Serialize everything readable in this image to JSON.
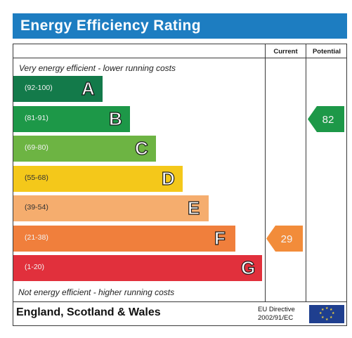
{
  "header": {
    "title": "Energy Efficiency Rating",
    "color": "#1d7dc1"
  },
  "columns": {
    "current": "Current",
    "potential": "Potential"
  },
  "notes": {
    "top": "Very energy efficient - lower running costs",
    "bottom": "Not energy efficient - higher running costs"
  },
  "bands": [
    {
      "range": "(92-100)",
      "letter": "A",
      "color": "#137a4a"
    },
    {
      "range": "(81-91)",
      "letter": "B",
      "color": "#1d9848"
    },
    {
      "range": "(69-80)",
      "letter": "C",
      "color": "#6db443"
    },
    {
      "range": "(55-68)",
      "letter": "D",
      "color": "#f4c81a"
    },
    {
      "range": "(39-54)",
      "letter": "E",
      "color": "#f5ad6e"
    },
    {
      "range": "(21-38)",
      "letter": "F",
      "color": "#f07f3c"
    },
    {
      "range": "(1-20)",
      "letter": "G",
      "color": "#e1303c"
    }
  ],
  "ratings": {
    "current": {
      "value": "29",
      "band": "F",
      "color": "#f28c3a"
    },
    "potential": {
      "value": "82",
      "band": "B",
      "color": "#1d9848"
    }
  },
  "footer": {
    "region": "England, Scotland & Wales",
    "directive_line1": "EU Directive",
    "directive_line2": "2002/91/EC",
    "flag_icon": "eu-flag-icon"
  }
}
